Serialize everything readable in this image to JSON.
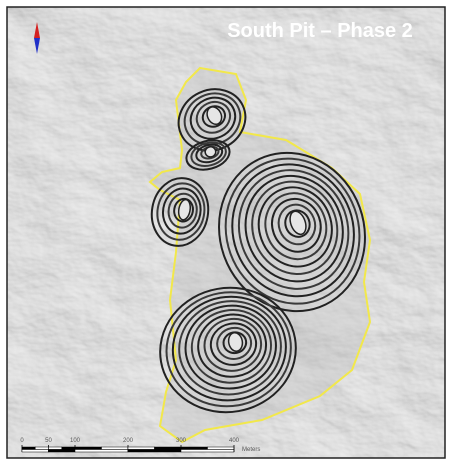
{
  "title": "South Pit – Phase 2",
  "scale_bar": {
    "ticks": [
      0,
      50,
      100,
      200,
      300,
      400
    ],
    "unit": "Meters"
  }
}
